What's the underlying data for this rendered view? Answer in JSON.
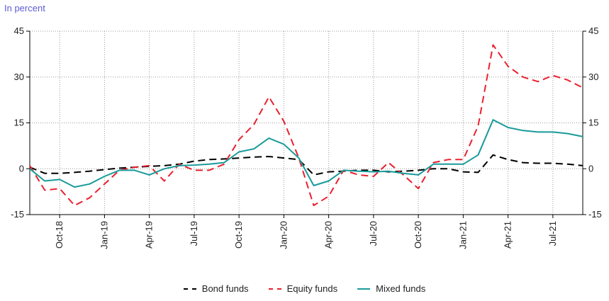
{
  "chart_data": {
    "type": "line",
    "unit_label": "In percent",
    "x": [
      "Aug-18",
      "Sep-18",
      "Oct-18",
      "Nov-18",
      "Dec-18",
      "Jan-19",
      "Feb-19",
      "Mar-19",
      "Apr-19",
      "May-19",
      "Jun-19",
      "Jul-19",
      "Aug-19",
      "Sep-19",
      "Oct-19",
      "Nov-19",
      "Dec-19",
      "Jan-20",
      "Feb-20",
      "Mar-20",
      "Apr-20",
      "May-20",
      "Jun-20",
      "Jul-20",
      "Aug-20",
      "Sep-20",
      "Oct-20",
      "Nov-20",
      "Dec-20",
      "Jan-21",
      "Feb-21",
      "Mar-21",
      "Apr-21",
      "May-21",
      "Jun-21",
      "Jul-21",
      "Aug-21",
      "Sep-21"
    ],
    "x_tick_labels": [
      "Oct-18",
      "Jan-19",
      "Apr-19",
      "Jul-19",
      "Oct-19",
      "Jan-20",
      "Apr-20",
      "Jul-20",
      "Oct-20",
      "Jan-21",
      "Apr-21",
      "Jul-21"
    ],
    "ylim": [
      -15,
      45
    ],
    "y_ticks": [
      -15,
      0,
      15,
      30,
      45
    ],
    "grid": true,
    "legend_position": "bottom",
    "series": [
      {
        "name": "Bond funds",
        "color": "#000000",
        "dash": "dashed",
        "values": [
          0.5,
          -1.5,
          -1.5,
          -1.2,
          -0.8,
          -0.3,
          0.2,
          0.5,
          0.8,
          1.0,
          1.5,
          2.5,
          3.0,
          3.2,
          3.5,
          3.8,
          4.0,
          3.5,
          3.0,
          -2.0,
          -1.0,
          -0.8,
          -0.5,
          -0.5,
          -1.0,
          -0.8,
          -0.5,
          0.0,
          0.0,
          -1.0,
          -1.2,
          4.5,
          3.0,
          2.0,
          1.8,
          1.8,
          1.5,
          1.0
        ]
      },
      {
        "name": "Equity funds",
        "color": "#e8212e",
        "dash": "dashed",
        "values": [
          1.0,
          -7.0,
          -6.5,
          -12.0,
          -9.5,
          -5.0,
          -0.5,
          0.5,
          1.0,
          -4.0,
          1.5,
          -0.5,
          -0.5,
          1.5,
          9.5,
          14.5,
          23.5,
          15.5,
          3.5,
          -12.0,
          -9.0,
          -0.5,
          -2.0,
          -2.5,
          2.0,
          -2.0,
          -6.5,
          2.0,
          3.0,
          3.0,
          14.0,
          40.5,
          33.5,
          30.0,
          28.5,
          30.5,
          29.0,
          26.5
        ]
      },
      {
        "name": "Mixed funds",
        "color": "#1a9a9a",
        "dash": "solid",
        "values": [
          0.0,
          -4.0,
          -3.5,
          -6.0,
          -5.0,
          -2.5,
          -0.5,
          -0.5,
          -2.0,
          0.0,
          1.0,
          1.2,
          1.5,
          2.0,
          5.5,
          6.5,
          10.0,
          8.0,
          3.5,
          -5.5,
          -4.0,
          -0.5,
          -0.8,
          -1.0,
          -0.8,
          -1.5,
          -2.0,
          1.5,
          1.5,
          1.5,
          4.5,
          16.0,
          13.5,
          12.5,
          12.0,
          12.0,
          11.5,
          10.5
        ]
      }
    ]
  }
}
